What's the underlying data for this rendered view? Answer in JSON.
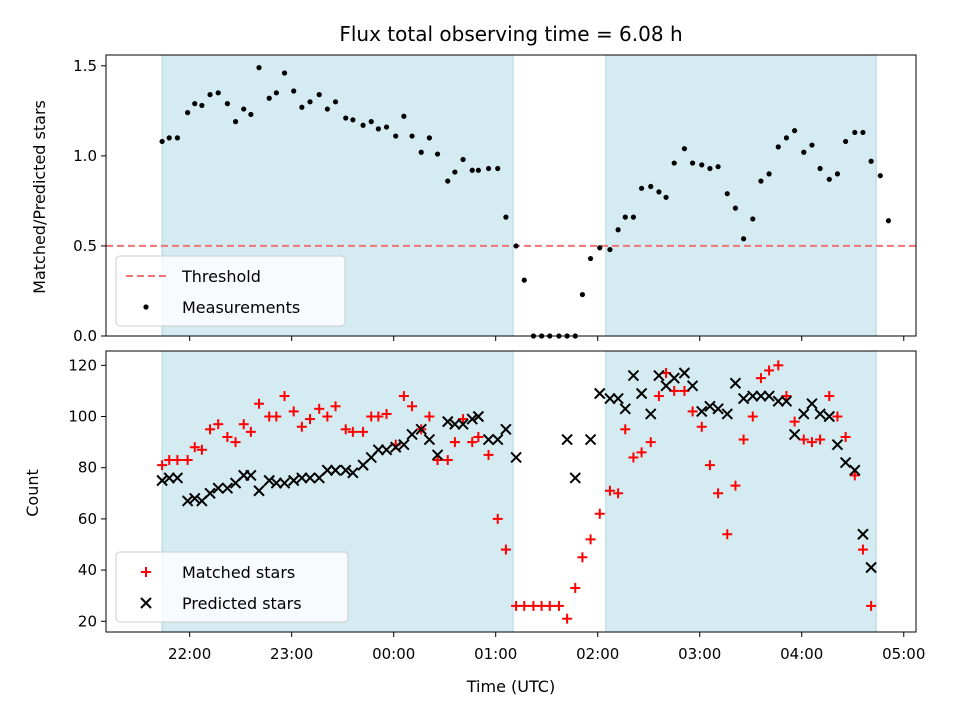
{
  "chart_data": [
    {
      "type": "scatter",
      "title": "Flux total observing time = 6.08 h",
      "xlabel": "",
      "ylabel": "Matched/Predicted stars",
      "xlim": [
        -2.82,
        5.12
      ],
      "ylim": [
        0,
        1.56
      ],
      "yticks": [
        {
          "v": 0,
          "label": "0.0"
        },
        {
          "v": 0.5,
          "label": "0.5"
        },
        {
          "v": 1.0,
          "label": "1.0"
        },
        {
          "v": 1.5,
          "label": "1.5"
        }
      ],
      "shaded_ranges": [
        [
          -2.27,
          1.17
        ],
        [
          2.08,
          4.73
        ]
      ],
      "threshold": {
        "name": "Threshold",
        "value": 0.5,
        "color": "#f07474"
      },
      "legend": {
        "position": "lower-left",
        "entries": [
          "Threshold",
          "Measurements"
        ]
      },
      "series": [
        {
          "name": "Measurements",
          "color": "#000000",
          "marker": "dot",
          "points": [
            [
              -2.27,
              1.08
            ],
            [
              -2.2,
              1.1
            ],
            [
              -2.12,
              1.1
            ],
            [
              -2.02,
              1.24
            ],
            [
              -1.95,
              1.29
            ],
            [
              -1.88,
              1.28
            ],
            [
              -1.8,
              1.34
            ],
            [
              -1.72,
              1.35
            ],
            [
              -1.63,
              1.29
            ],
            [
              -1.55,
              1.19
            ],
            [
              -1.47,
              1.26
            ],
            [
              -1.4,
              1.23
            ],
            [
              -1.32,
              1.49
            ],
            [
              -1.22,
              1.32
            ],
            [
              -1.15,
              1.35
            ],
            [
              -1.07,
              1.46
            ],
            [
              -0.98,
              1.36
            ],
            [
              -0.9,
              1.27
            ],
            [
              -0.82,
              1.3
            ],
            [
              -0.73,
              1.34
            ],
            [
              -0.65,
              1.26
            ],
            [
              -0.57,
              1.3
            ],
            [
              -0.47,
              1.21
            ],
            [
              -0.4,
              1.2
            ],
            [
              -0.3,
              1.17
            ],
            [
              -0.22,
              1.19
            ],
            [
              -0.15,
              1.15
            ],
            [
              -0.07,
              1.16
            ],
            [
              0.02,
              1.11
            ],
            [
              0.1,
              1.22
            ],
            [
              0.18,
              1.11
            ],
            [
              0.27,
              1.02
            ],
            [
              0.35,
              1.1
            ],
            [
              0.43,
              1.01
            ],
            [
              0.53,
              0.86
            ],
            [
              0.6,
              0.91
            ],
            [
              0.68,
              0.98
            ],
            [
              0.77,
              0.92
            ],
            [
              0.83,
              0.92
            ],
            [
              0.93,
              0.93
            ],
            [
              1.02,
              0.93
            ],
            [
              1.1,
              0.66
            ],
            [
              1.2,
              0.5
            ],
            [
              1.28,
              0.31
            ],
            [
              1.37,
              0.0
            ],
            [
              1.45,
              0.0
            ],
            [
              1.53,
              0.0
            ],
            [
              1.62,
              0.0
            ],
            [
              1.7,
              0.0
            ],
            [
              1.78,
              0.0
            ],
            [
              1.85,
              0.23
            ],
            [
              1.93,
              0.43
            ],
            [
              2.02,
              0.49
            ],
            [
              2.12,
              0.48
            ],
            [
              2.2,
              0.59
            ],
            [
              2.27,
              0.66
            ],
            [
              2.35,
              0.66
            ],
            [
              2.43,
              0.82
            ],
            [
              2.52,
              0.83
            ],
            [
              2.6,
              0.8
            ],
            [
              2.67,
              0.77
            ],
            [
              2.75,
              0.96
            ],
            [
              2.85,
              1.04
            ],
            [
              2.93,
              0.96
            ],
            [
              3.02,
              0.95
            ],
            [
              3.1,
              0.93
            ],
            [
              3.18,
              0.94
            ],
            [
              3.27,
              0.79
            ],
            [
              3.35,
              0.71
            ],
            [
              3.43,
              0.54
            ],
            [
              3.52,
              0.65
            ],
            [
              3.6,
              0.86
            ],
            [
              3.68,
              0.9
            ],
            [
              3.77,
              1.05
            ],
            [
              3.85,
              1.1
            ],
            [
              3.93,
              1.14
            ],
            [
              4.02,
              1.02
            ],
            [
              4.1,
              1.06
            ],
            [
              4.18,
              0.93
            ],
            [
              4.27,
              0.87
            ],
            [
              4.35,
              0.9
            ],
            [
              4.43,
              1.08
            ],
            [
              4.52,
              1.13
            ],
            [
              4.6,
              1.13
            ],
            [
              4.68,
              0.97
            ],
            [
              4.77,
              0.89
            ],
            [
              4.85,
              0.64
            ]
          ]
        }
      ]
    },
    {
      "type": "scatter",
      "title": "",
      "xlabel": "Time (UTC)",
      "ylabel": "Count",
      "xlim": [
        -2.82,
        5.12
      ],
      "ylim": [
        15.8,
        125.6
      ],
      "yticks": [
        {
          "v": 20,
          "label": "20"
        },
        {
          "v": 40,
          "label": "40"
        },
        {
          "v": 60,
          "label": "60"
        },
        {
          "v": 80,
          "label": "80"
        },
        {
          "v": 100,
          "label": "100"
        },
        {
          "v": 120,
          "label": "120"
        }
      ],
      "xticks": [
        {
          "v": -2,
          "label": "22:00"
        },
        {
          "v": -1,
          "label": "23:00"
        },
        {
          "v": 0,
          "label": "00:00"
        },
        {
          "v": 1,
          "label": "01:00"
        },
        {
          "v": 2,
          "label": "02:00"
        },
        {
          "v": 3,
          "label": "03:00"
        },
        {
          "v": 4,
          "label": "04:00"
        },
        {
          "v": 5,
          "label": "05:00"
        }
      ],
      "shaded_ranges": [
        [
          -2.27,
          1.17
        ],
        [
          2.08,
          4.73
        ]
      ],
      "legend": {
        "position": "lower-left",
        "entries": [
          "Matched stars",
          "Predicted stars"
        ]
      },
      "series": [
        {
          "name": "Matched stars",
          "color": "#ff0000",
          "marker": "plus",
          "points": [
            [
              -2.27,
              81
            ],
            [
              -2.2,
              83
            ],
            [
              -2.12,
              83
            ],
            [
              -2.02,
              83
            ],
            [
              -1.95,
              88
            ],
            [
              -1.88,
              87
            ],
            [
              -1.8,
              95
            ],
            [
              -1.72,
              97
            ],
            [
              -1.63,
              92
            ],
            [
              -1.55,
              90
            ],
            [
              -1.47,
              97
            ],
            [
              -1.4,
              94
            ],
            [
              -1.32,
              105
            ],
            [
              -1.22,
              100
            ],
            [
              -1.15,
              100
            ],
            [
              -1.07,
              108
            ],
            [
              -0.98,
              102
            ],
            [
              -0.9,
              96
            ],
            [
              -0.82,
              99
            ],
            [
              -0.73,
              103
            ],
            [
              -0.65,
              100
            ],
            [
              -0.57,
              104
            ],
            [
              -0.47,
              95
            ],
            [
              -0.4,
              94
            ],
            [
              -0.3,
              94
            ],
            [
              -0.22,
              100
            ],
            [
              -0.15,
              100
            ],
            [
              -0.07,
              101
            ],
            [
              0.02,
              89
            ],
            [
              0.1,
              108
            ],
            [
              0.18,
              104
            ],
            [
              0.27,
              95
            ],
            [
              0.35,
              100
            ],
            [
              0.43,
              83
            ],
            [
              0.53,
              83
            ],
            [
              0.6,
              90
            ],
            [
              0.68,
              99
            ],
            [
              0.77,
              90
            ],
            [
              0.83,
              92
            ],
            [
              0.93,
              85
            ],
            [
              1.02,
              60
            ],
            [
              1.1,
              48
            ],
            [
              1.2,
              26
            ],
            [
              1.28,
              26
            ],
            [
              1.37,
              26
            ],
            [
              1.45,
              26
            ],
            [
              1.53,
              26
            ],
            [
              1.62,
              26
            ],
            [
              1.7,
              21
            ],
            [
              1.78,
              33
            ],
            [
              1.85,
              45
            ],
            [
              1.93,
              52
            ],
            [
              2.02,
              62
            ],
            [
              2.12,
              71
            ],
            [
              2.2,
              70
            ],
            [
              2.27,
              95
            ],
            [
              2.35,
              84
            ],
            [
              2.43,
              86
            ],
            [
              2.52,
              90
            ],
            [
              2.6,
              108
            ],
            [
              2.67,
              117
            ],
            [
              2.75,
              110
            ],
            [
              2.85,
              110
            ],
            [
              2.93,
              102
            ],
            [
              3.02,
              96
            ],
            [
              3.1,
              81
            ],
            [
              3.18,
              70
            ],
            [
              3.27,
              54
            ],
            [
              3.35,
              73
            ],
            [
              3.43,
              91
            ],
            [
              3.52,
              100
            ],
            [
              3.6,
              115
            ],
            [
              3.68,
              118
            ],
            [
              3.77,
              120
            ],
            [
              3.85,
              108
            ],
            [
              3.93,
              98
            ],
            [
              4.02,
              91
            ],
            [
              4.1,
              90
            ],
            [
              4.18,
              91
            ],
            [
              4.27,
              108
            ],
            [
              4.35,
              100
            ],
            [
              4.43,
              92
            ],
            [
              4.52,
              77
            ],
            [
              4.6,
              48
            ],
            [
              4.68,
              26
            ]
          ]
        },
        {
          "name": "Predicted stars",
          "color": "#000000",
          "marker": "x",
          "points": [
            [
              -2.27,
              75
            ],
            [
              -2.2,
              76
            ],
            [
              -2.12,
              76
            ],
            [
              -2.02,
              67
            ],
            [
              -1.95,
              68
            ],
            [
              -1.88,
              67
            ],
            [
              -1.8,
              70
            ],
            [
              -1.72,
              72
            ],
            [
              -1.63,
              72
            ],
            [
              -1.55,
              74
            ],
            [
              -1.47,
              77
            ],
            [
              -1.4,
              77
            ],
            [
              -1.32,
              71
            ],
            [
              -1.22,
              75
            ],
            [
              -1.15,
              74
            ],
            [
              -1.07,
              74
            ],
            [
              -0.98,
              75
            ],
            [
              -0.9,
              76
            ],
            [
              -0.82,
              76
            ],
            [
              -0.73,
              76
            ],
            [
              -0.65,
              79
            ],
            [
              -0.57,
              79
            ],
            [
              -0.47,
              79
            ],
            [
              -0.4,
              78
            ],
            [
              -0.3,
              81
            ],
            [
              -0.22,
              84
            ],
            [
              -0.15,
              87
            ],
            [
              -0.07,
              87
            ],
            [
              0.02,
              88
            ],
            [
              0.1,
              89
            ],
            [
              0.18,
              93
            ],
            [
              0.27,
              95
            ],
            [
              0.35,
              91
            ],
            [
              0.43,
              85
            ],
            [
              0.53,
              98
            ],
            [
              0.6,
              97
            ],
            [
              0.68,
              97
            ],
            [
              0.77,
              99
            ],
            [
              0.83,
              100
            ],
            [
              0.93,
              91
            ],
            [
              1.02,
              91
            ],
            [
              1.1,
              95
            ],
            [
              1.2,
              84
            ],
            [
              1.7,
              91
            ],
            [
              1.78,
              76
            ],
            [
              1.93,
              91
            ],
            [
              2.02,
              109
            ],
            [
              2.12,
              107
            ],
            [
              2.2,
              107
            ],
            [
              2.27,
              103
            ],
            [
              2.35,
              116
            ],
            [
              2.43,
              109
            ],
            [
              2.52,
              101
            ],
            [
              2.6,
              116
            ],
            [
              2.67,
              112
            ],
            [
              2.75,
              115
            ],
            [
              2.85,
              117
            ],
            [
              2.93,
              112
            ],
            [
              3.02,
              102
            ],
            [
              3.1,
              104
            ],
            [
              3.18,
              103
            ],
            [
              3.27,
              101
            ],
            [
              3.35,
              113
            ],
            [
              3.43,
              107
            ],
            [
              3.52,
              108
            ],
            [
              3.6,
              108
            ],
            [
              3.68,
              108
            ],
            [
              3.77,
              106
            ],
            [
              3.85,
              106
            ],
            [
              3.93,
              93
            ],
            [
              4.02,
              101
            ],
            [
              4.1,
              105
            ],
            [
              4.18,
              101
            ],
            [
              4.27,
              100
            ],
            [
              4.35,
              89
            ],
            [
              4.43,
              82
            ],
            [
              4.52,
              79
            ],
            [
              4.6,
              54
            ],
            [
              4.68,
              41
            ]
          ]
        }
      ]
    }
  ]
}
